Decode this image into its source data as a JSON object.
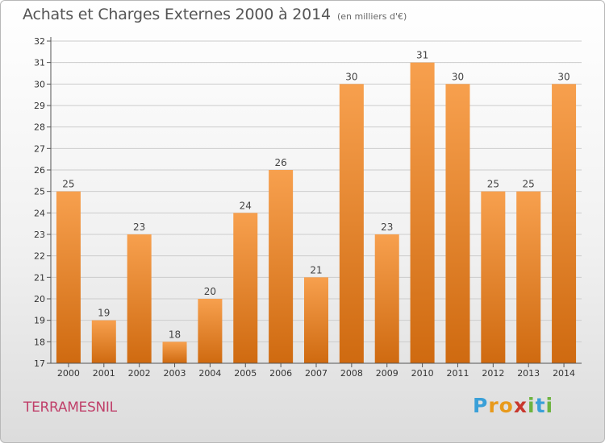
{
  "header": {
    "title": "Achats et Charges Externes 2000 à 2014",
    "subtitle": "(en milliers d'€)"
  },
  "footer": {
    "commune": "TERRAMESNIL",
    "logo_text": "Proxiti",
    "logo_letters": [
      {
        "ch": "P",
        "color": "#3aa0d8"
      },
      {
        "ch": "r",
        "color": "#e89a1c"
      },
      {
        "ch": "o",
        "color": "#e89a1c"
      },
      {
        "ch": "x",
        "color": "#c8372d"
      },
      {
        "ch": "i",
        "color": "#6db33f"
      },
      {
        "ch": "t",
        "color": "#3aa0d8"
      },
      {
        "ch": "i",
        "color": "#6db33f"
      }
    ]
  },
  "colors": {
    "bar_top": "#f7a04e",
    "bar_bottom": "#cf6a10",
    "axis": "#555555",
    "grid": "#cccccc",
    "tick_text": "#333333"
  },
  "chart_data": {
    "type": "bar",
    "title": "Achats et Charges Externes 2000 à 2014",
    "subtitle": "(en milliers d'€)",
    "xlabel": "",
    "ylabel": "",
    "categories": [
      "2000",
      "2001",
      "2002",
      "2003",
      "2004",
      "2005",
      "2006",
      "2007",
      "2008",
      "2009",
      "2010",
      "2011",
      "2012",
      "2013",
      "2014"
    ],
    "values": [
      25,
      19,
      23,
      18,
      20,
      24,
      26,
      21,
      30,
      23,
      31,
      30,
      25,
      25,
      30
    ],
    "ylim": [
      17,
      32
    ],
    "yticks": [
      17,
      18,
      19,
      20,
      21,
      22,
      23,
      24,
      25,
      26,
      27,
      28,
      29,
      30,
      31,
      32
    ],
    "grid": true,
    "data_labels": true
  }
}
